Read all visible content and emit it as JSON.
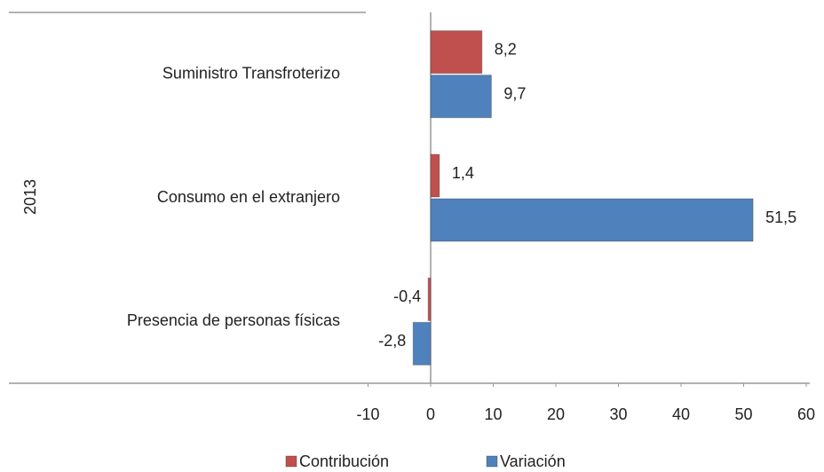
{
  "chart_data": {
    "type": "bar",
    "orientation": "horizontal",
    "group": "2013",
    "categories": [
      "Suministro Transfroterizo",
      "Consumo en el extranjero",
      "Presencia de personas físicas"
    ],
    "series": [
      {
        "name": "Contribución",
        "color": "#c0504d",
        "values": [
          8.2,
          1.4,
          -0.4
        ],
        "value_labels": [
          "8,2",
          "1,4",
          "-0,4"
        ]
      },
      {
        "name": "Variación",
        "color": "#4f81bd",
        "values": [
          9.7,
          51.5,
          -2.8
        ],
        "value_labels": [
          "9,7",
          "51,5",
          "-2,8"
        ]
      }
    ],
    "xlim": [
      -10,
      60
    ],
    "xticks": [
      -10,
      0,
      10,
      20,
      30,
      40,
      50,
      60
    ],
    "grid": false
  }
}
